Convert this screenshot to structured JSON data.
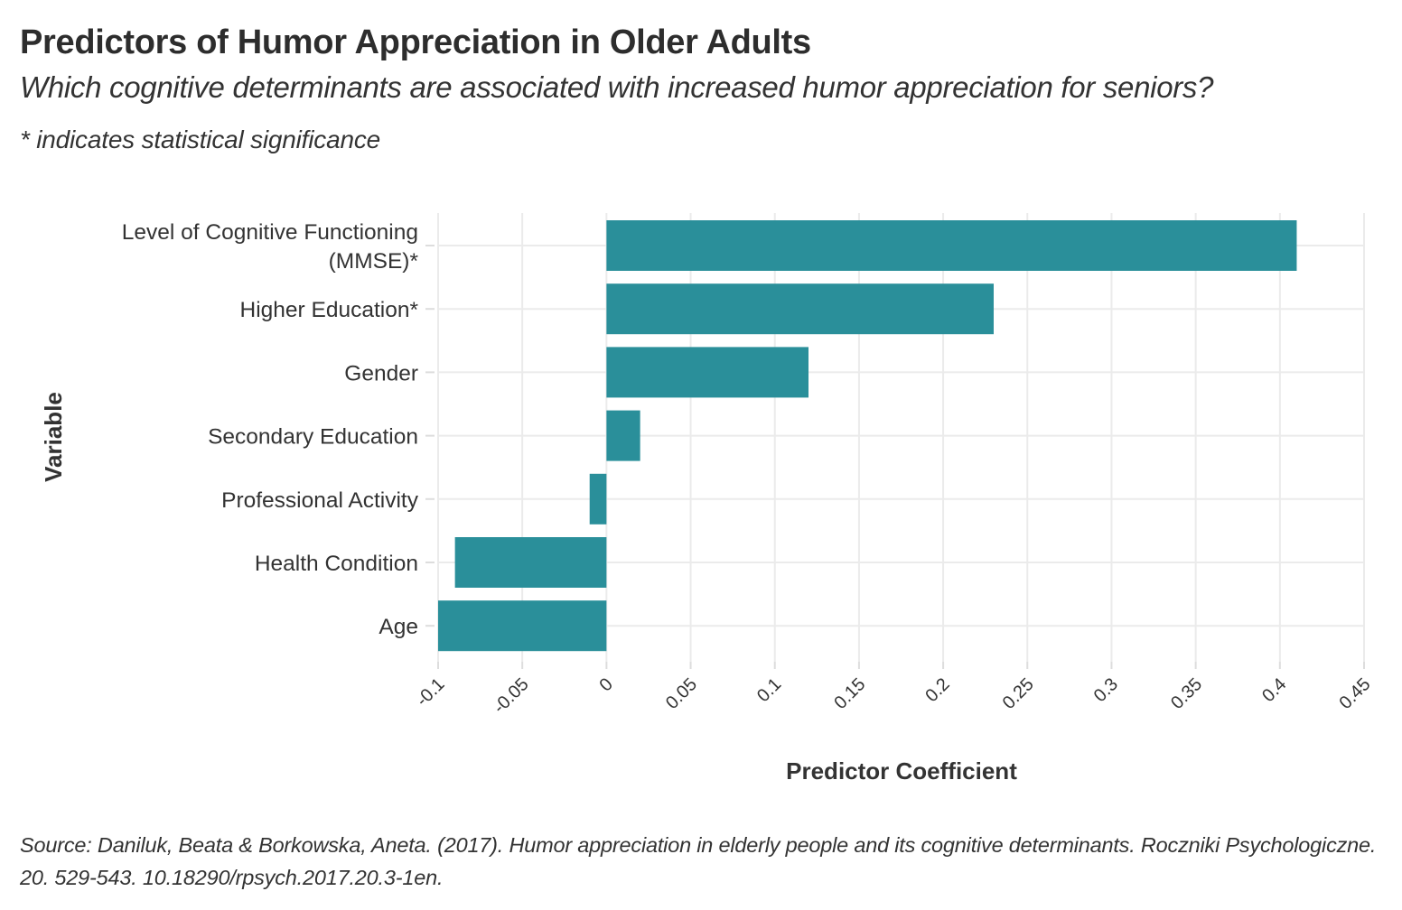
{
  "title": "Predictors of Humor Appreciation in Older Adults",
  "subtitle": "Which cognitive determinants are associated with increased humor appreciation for seniors?",
  "note": "* indicates statistical significance",
  "caption": "Source: Daniluk, Beata & Borkowska, Aneta. (2017). Humor appreciation in elderly people and its cognitive determinants. Roczniki Psychologiczne. 20. 529-543. 10.18290/rpsych.2017.20.3-1en.",
  "colors": {
    "bar": "#2a8f9a",
    "grid": "#ebebeb",
    "text": "#333333"
  },
  "chart_data": {
    "type": "bar",
    "orientation": "horizontal",
    "title": "Predictors of Humor Appreciation in Older Adults",
    "subtitle": "Which cognitive determinants are associated with increased humor appreciation for seniors?",
    "xlabel": "Predictor Coefficient",
    "ylabel": "Variable",
    "categories": [
      [
        "Level of Cognitive Functioning",
        "(MMSE)*"
      ],
      [
        "Higher Education*"
      ],
      [
        "Gender"
      ],
      [
        "Secondary Education"
      ],
      [
        "Professional Activity"
      ],
      [
        "Health Condition"
      ],
      [
        "Age"
      ]
    ],
    "values": [
      0.41,
      0.23,
      0.12,
      0.02,
      -0.01,
      -0.09,
      -0.1
    ],
    "xlim": [
      -0.1,
      0.45
    ],
    "xticks": [
      "-0.1",
      "-0.05",
      "0",
      "0.05",
      "0.1",
      "0.15",
      "0.2",
      "0.25",
      "0.3",
      "0.35",
      "0.4",
      "0.45"
    ],
    "xtick_values": [
      -0.1,
      -0.05,
      0,
      0.05,
      0.1,
      0.15,
      0.2,
      0.25,
      0.3,
      0.35,
      0.4,
      0.45
    ],
    "grid": true,
    "legend": "none"
  }
}
